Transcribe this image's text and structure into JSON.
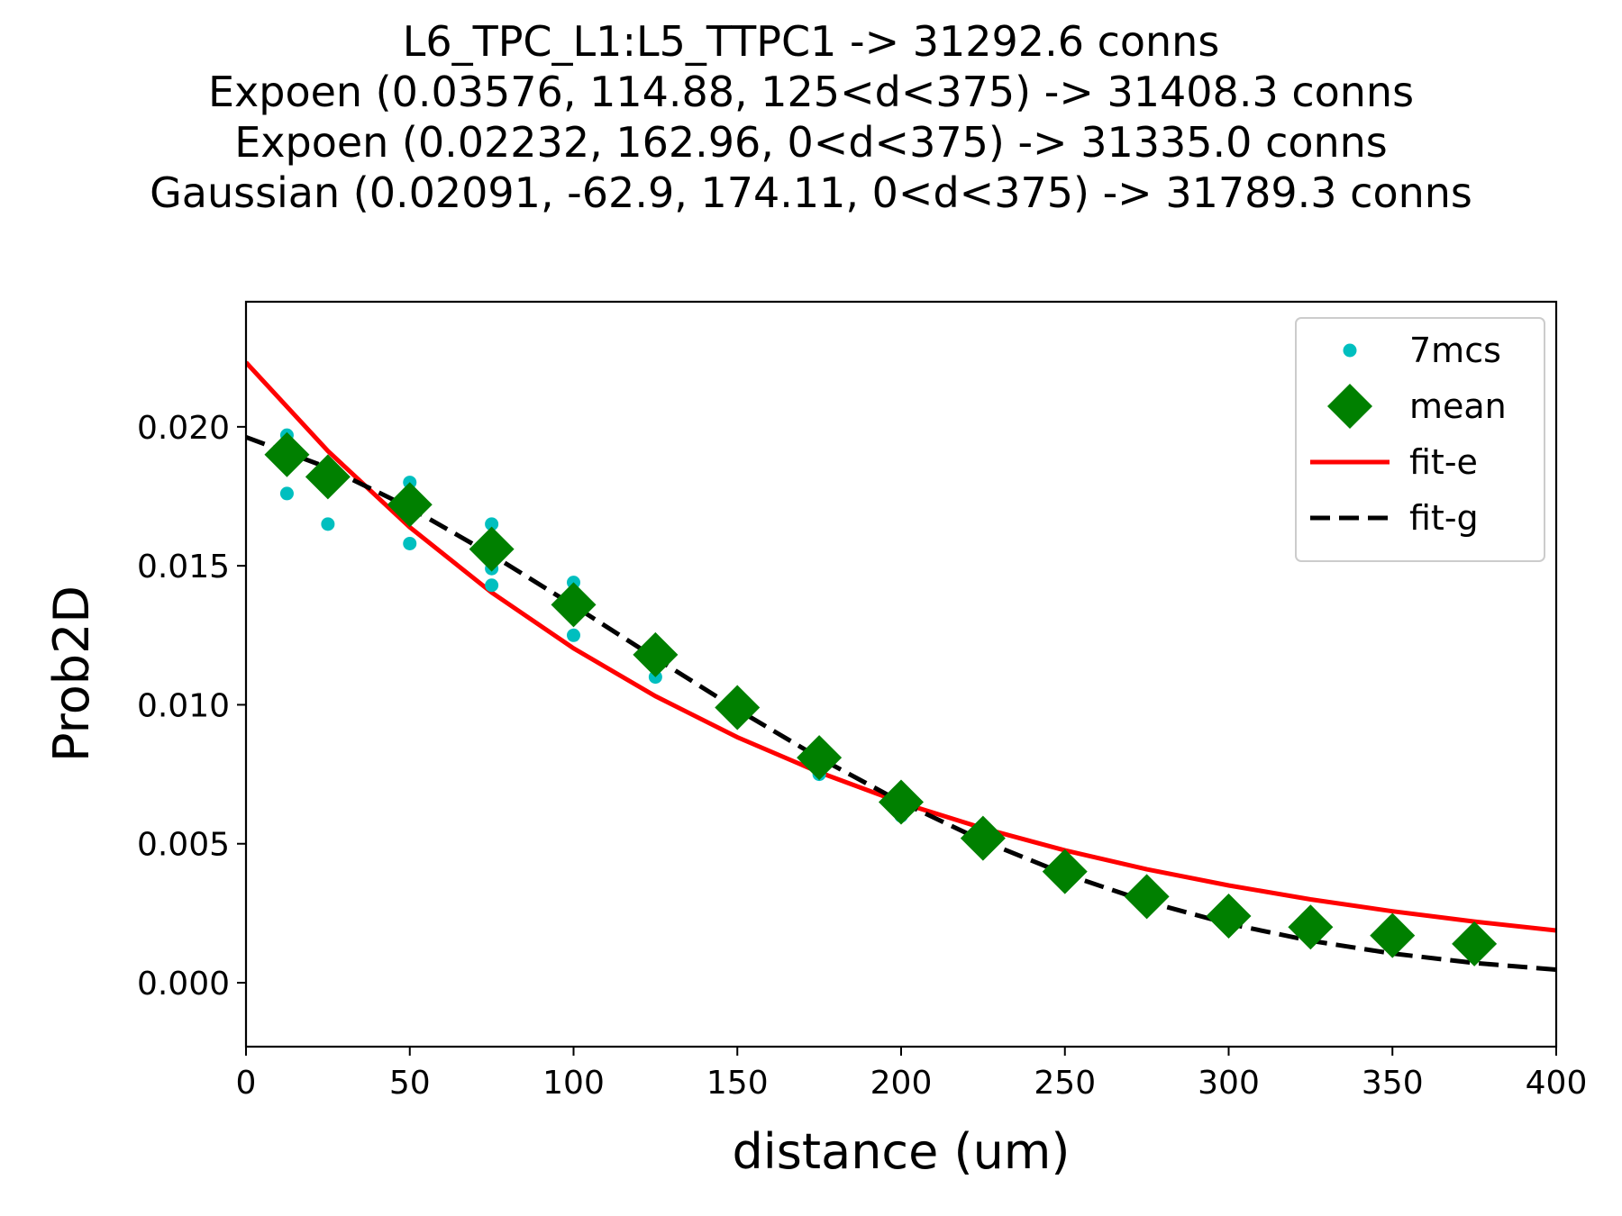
{
  "chart_data": {
    "type": "scatter",
    "title_lines": [
      "L6_TPC_L1:L5_TTPC1 -> 31292.6 conns",
      "Expoen (0.03576, 114.88, 125<d<375) -> 31408.3 conns",
      "Expoen (0.02232, 162.96, 0<d<375) -> 31335.0 conns",
      "Gaussian (0.02091, -62.9, 174.11, 0<d<375) -> 31789.3 conns"
    ],
    "xlabel": "distance (um)",
    "ylabel": "Prob2D",
    "xlim": [
      0,
      400
    ],
    "ylim": [
      -0.0023,
      0.0245
    ],
    "x_ticks": [
      0,
      50,
      100,
      150,
      200,
      250,
      300,
      350,
      400
    ],
    "y_ticks": [
      0.0,
      0.005,
      0.01,
      0.015,
      0.02
    ],
    "x_tick_labels": [
      "0",
      "50",
      "100",
      "150",
      "200",
      "250",
      "300",
      "350",
      "400"
    ],
    "y_tick_labels": [
      "0.000",
      "0.005",
      "0.010",
      "0.015",
      "0.020"
    ],
    "grid": false,
    "legend_position": "top-right",
    "series": [
      {
        "name": "7mcs",
        "kind": "points",
        "color": "#00bfbf",
        "points": [
          [
            12.5,
            0.0197
          ],
          [
            12.5,
            0.0193
          ],
          [
            12.5,
            0.0176
          ],
          [
            25,
            0.0186
          ],
          [
            25,
            0.0183
          ],
          [
            25,
            0.0165
          ],
          [
            50,
            0.018
          ],
          [
            50,
            0.0175
          ],
          [
            50,
            0.0171
          ],
          [
            50,
            0.0158
          ],
          [
            75,
            0.0165
          ],
          [
            75,
            0.016
          ],
          [
            75,
            0.0152
          ],
          [
            75,
            0.0149
          ],
          [
            75,
            0.0143
          ],
          [
            100,
            0.0144
          ],
          [
            100,
            0.0138
          ],
          [
            100,
            0.0134
          ],
          [
            100,
            0.0125
          ],
          [
            125,
            0.012
          ],
          [
            125,
            0.0115
          ],
          [
            125,
            0.011
          ],
          [
            150,
            0.0101
          ],
          [
            150,
            0.0098
          ],
          [
            175,
            0.0083
          ],
          [
            175,
            0.0075
          ],
          [
            200,
            0.0066
          ],
          [
            200,
            0.006
          ],
          [
            225,
            0.0053
          ],
          [
            225,
            0.0051
          ],
          [
            250,
            0.0041
          ],
          [
            250,
            0.0039
          ],
          [
            275,
            0.0032
          ],
          [
            275,
            0.003
          ],
          [
            300,
            0.0025
          ],
          [
            300,
            0.0023
          ],
          [
            325,
            0.0021
          ],
          [
            325,
            0.0019
          ],
          [
            350,
            0.0017
          ],
          [
            350,
            0.0016
          ],
          [
            375,
            0.0015
          ],
          [
            375,
            0.0013
          ]
        ]
      },
      {
        "name": "mean",
        "kind": "diamonds",
        "color": "#008000",
        "points": [
          [
            12.5,
            0.019
          ],
          [
            25,
            0.0182
          ],
          [
            50,
            0.0172
          ],
          [
            75,
            0.0156
          ],
          [
            100,
            0.0136
          ],
          [
            125,
            0.0118
          ],
          [
            150,
            0.0099
          ],
          [
            175,
            0.0081
          ],
          [
            200,
            0.0065
          ],
          [
            225,
            0.0052
          ],
          [
            250,
            0.004
          ],
          [
            275,
            0.0031
          ],
          [
            300,
            0.0024
          ],
          [
            325,
            0.002
          ],
          [
            350,
            0.0017
          ],
          [
            375,
            0.0014
          ]
        ]
      },
      {
        "name": "fit-e",
        "kind": "line",
        "color": "#ff0000",
        "dashed": false,
        "x": [
          0,
          25,
          50,
          75,
          100,
          125,
          150,
          175,
          200,
          225,
          250,
          275,
          300,
          325,
          350,
          375,
          400
        ],
        "y": [
          0.02232,
          0.01913,
          0.01639,
          0.01404,
          0.01203,
          0.01031,
          0.00883,
          0.00757,
          0.00648,
          0.00556,
          0.00476,
          0.00408,
          0.0035,
          0.003,
          0.00257,
          0.0022,
          0.00188
        ]
      },
      {
        "name": "fit-g",
        "kind": "line",
        "color": "#000000",
        "dashed": true,
        "x": [
          0,
          25,
          50,
          75,
          100,
          125,
          150,
          175,
          200,
          225,
          250,
          275,
          300,
          325,
          350,
          375,
          400
        ],
        "y": [
          0.01963,
          0.01853,
          0.01709,
          0.0154,
          0.01357,
          0.01168,
          0.00983,
          0.00809,
          0.0065,
          0.0051,
          0.00391,
          0.00292,
          0.00212,
          0.00151,
          0.00105,
          0.00071,
          0.00047
        ]
      }
    ]
  }
}
